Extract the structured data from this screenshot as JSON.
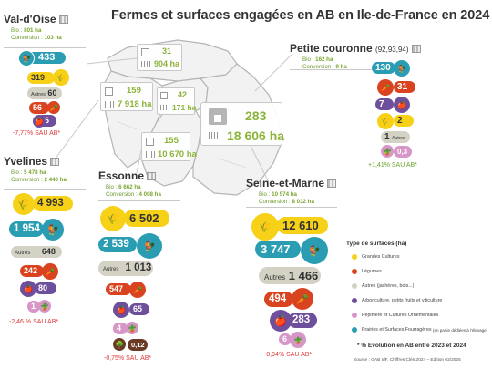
{
  "title": "Fermes et surfaces engagées en AB en Ile-de-France en 2024",
  "departments": {
    "val_doise": {
      "name": "Val-d'Oise",
      "bio_label": "Bio :",
      "bio": "801 ha",
      "conv_label": "Conversion :",
      "conv": "103 ha",
      "prairies": "433",
      "grandes": "319",
      "autres_label": "Autres",
      "autres": "60",
      "legumes": "56",
      "arbo": "36",
      "trend": "-7,77% SAU AB*"
    },
    "yvelines": {
      "name": "Yvelines",
      "bio_label": "Bio :",
      "bio": "5 478 ha",
      "conv_label": "Conversion :",
      "conv": "2 440 ha",
      "grandes": "4 993",
      "prairies": "1 954",
      "autres_label": "Autres",
      "autres": "648",
      "legumes": "242",
      "arbo": "80",
      "pepi": "1",
      "trend": "-2,46 % SAU AB*"
    },
    "essonne": {
      "name": "Essonne",
      "bio_label": "Bio :",
      "bio": "6 662 ha",
      "conv_label": "Conversion :",
      "conv": "4 008 ha",
      "grandes": "6 502",
      "prairies": "2 539",
      "autres_label": "Autres",
      "autres": "1 013",
      "legumes": "547",
      "arbo": "65",
      "pepi": "4",
      "other": "0,12",
      "trend": "-0,75% SAU AB*"
    },
    "seine_marne": {
      "name": "Seine-et-Marne",
      "bio_label": "Bio :",
      "bio": "10 574 ha",
      "conv_label": "Conversion :",
      "conv": "8 032 ha",
      "grandes": "12 610",
      "prairies": "3 747",
      "autres_label": "Autres",
      "autres": "1 466",
      "legumes": "494",
      "arbo": "283",
      "pepi": "6",
      "trend": "-0,94% SAU AB*"
    },
    "petite_couronne": {
      "name": "Petite couronne",
      "codes": "(92,93,94)",
      "bio_label": "Bio :",
      "bio": "162 ha",
      "conv_label": "Conversion :",
      "conv": "9 ha",
      "prairies": "130",
      "legumes": "31",
      "arbo": "7",
      "grandes": "2",
      "autres_label": "Autres",
      "autres": "1",
      "pepi": "0,3",
      "trend": "+1,41% SAU AB*"
    }
  },
  "map": {
    "val_doise": {
      "farms": "31",
      "surface": "904 ha"
    },
    "yvelines": {
      "farms": "159",
      "surface": "7 918 ha"
    },
    "petite_couronne": {
      "farms": "42",
      "surface": "171 ha"
    },
    "essonne": {
      "farms": "155",
      "surface": "10 670 ha"
    },
    "seine_marne": {
      "farms": "283",
      "surface": "18 606 ha"
    }
  },
  "legend": {
    "title": "Type de surfaces (ha)",
    "items": [
      {
        "label": "Grandes Cultures",
        "color": "#f7d117"
      },
      {
        "label": "Légumes",
        "color": "#d9431f"
      },
      {
        "label": "Autres (jachères, bois...)",
        "color": "#d4d1c5"
      },
      {
        "label": "Arboriculture, petits fruits et viticulture",
        "color": "#6e4f9b"
      },
      {
        "label": "Pépinière et Cultures Ornementales",
        "color": "#d896c8"
      },
      {
        "label": "Prairies et Surfaces Fourragères",
        "note": "(en partie dédiées à l'élevage)",
        "color": "#2a9db3"
      }
    ]
  },
  "footnote": "* % Evolution en AB entre 2023 et 2024",
  "source": "Source : GAB IdF, Chiffres Clés 2024 – Edition 02/2025",
  "colors": {
    "accent_green": "#8cb33a",
    "title_dark": "#333333",
    "negative": "#e03a3a",
    "positive": "#6aa22a"
  },
  "icons": [
    "wheat-icon",
    "rooster-icon",
    "carrot-icon",
    "apple-icon",
    "pot-plant-icon",
    "barn-icon",
    "building-icon",
    "field-icon"
  ]
}
